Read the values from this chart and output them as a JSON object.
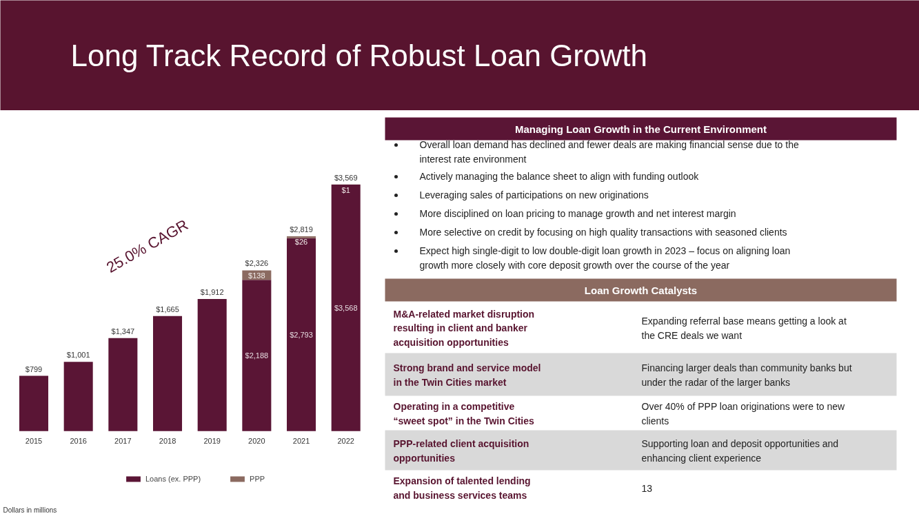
{
  "chart_data": [
    {
      "type": "bar",
      "title": "Long Track Record of Robust Loan Growth",
      "categories": [
        "2015",
        "2016",
        "2017",
        "2018",
        "2019",
        "2020",
        "2021",
        "2022"
      ],
      "stacked": true,
      "series": [
        {
          "name": "Loans (ex. PPP)",
          "color": "#5a1535",
          "values": [
            799,
            1001,
            1347,
            1665,
            1912,
            2188,
            2793,
            3568
          ],
          "value_labels": [
            null,
            null,
            null,
            null,
            null,
            "$2,188",
            "$2,793",
            "$3,568"
          ]
        },
        {
          "name": "PPP",
          "color": "#8b6a60",
          "values": [
            null,
            null,
            null,
            null,
            null,
            138,
            26,
            1
          ],
          "value_labels": [
            null,
            null,
            null,
            null,
            null,
            "$138",
            "$26",
            "$1"
          ]
        }
      ],
      "totals": [
        "$799",
        "$1,001",
        "$1,347",
        "$1,665",
        "$1,912",
        "$2,326",
        "$2,819",
        "$3,569"
      ],
      "legend": "bottom",
      "annotations": [
        "25.0% CAGR",
        "Dollars in millions"
      ]
    },
    {
      "type": "other",
      "title": "Managing Loan Growth in the Current Environment",
      "color": "#5a1535",
      "annotations": [
        "Overall loan demand has declined and fewer deals are making financial sense due to the interest rate environment",
        "Actively managing the balance sheet to align with funding outlook",
        "Leveraging sales of participations on new originations",
        "More disciplined on loan pricing to manage growth and net interest margin",
        "More selective on credit by focusing on high quality transactions with seasoned clients",
        "Expect high single-digit to low double-digit loan growth in 2023 – focus on aligning loan growth more closely with core deposit growth over the course of the year"
      ]
    },
    {
      "type": "other",
      "title": "Loan Growth Catalysts",
      "color": "#8b6a60",
      "categories": [
        "M&A-related market disruption resulting in client and banker acquisition opportunities",
        "Strong brand and service model in the Twin Cities market",
        "Operating in a competitive “sweet spot” in the Twin Cities",
        "PPP-related client acquisition opportunities",
        "Expansion of talented lending and business services teams"
      ],
      "annotations": [
        "Expanding referral base means getting a look at the CRE deals we want",
        "Financing larger deals than community banks but under the radar of the larger banks",
        "Over 40% of PPP loan originations were to new clients",
        "Supporting loan and deposit opportunities and enhancing client experience",
        "13"
      ]
    }
  ]
}
